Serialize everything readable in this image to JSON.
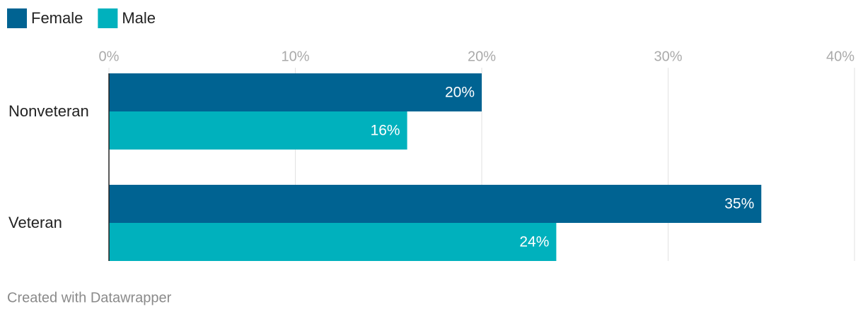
{
  "chart_data": {
    "type": "bar",
    "categories": [
      "Nonveteran",
      "Veteran"
    ],
    "series": [
      {
        "name": "Female",
        "color": "#006392",
        "values": [
          20,
          35
        ],
        "value_labels": [
          "20%",
          "35%"
        ]
      },
      {
        "name": "Male",
        "color": "#00b1bd",
        "values": [
          16,
          24
        ],
        "value_labels": [
          "16%",
          "24%"
        ]
      }
    ],
    "xlim": [
      0,
      40
    ],
    "xticks": [
      {
        "value": 0,
        "label": "0%"
      },
      {
        "value": 10,
        "label": "10%"
      },
      {
        "value": 20,
        "label": "20%"
      },
      {
        "value": 30,
        "label": "30%"
      },
      {
        "value": 40,
        "label": "40%"
      }
    ],
    "grid": true
  },
  "footer": {
    "credit": "Created with Datawrapper"
  }
}
